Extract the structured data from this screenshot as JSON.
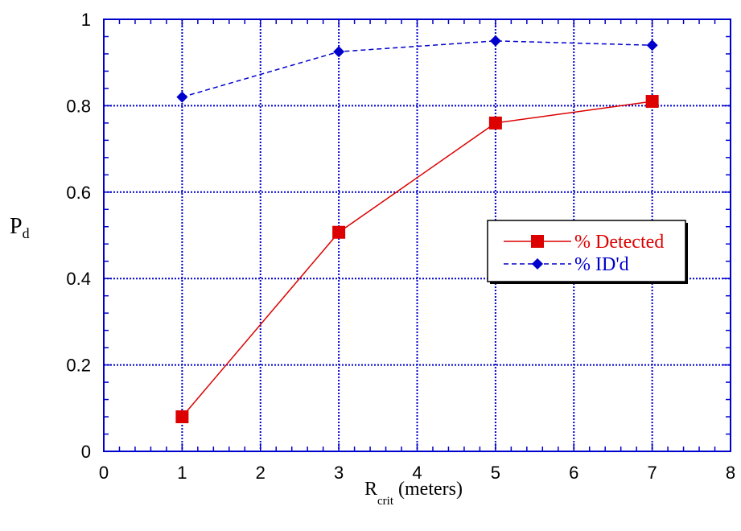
{
  "chart_data": {
    "type": "line",
    "xlim": [
      0,
      8
    ],
    "ylim": [
      0,
      1
    ],
    "x_ticks": [
      "0",
      "1",
      "2",
      "3",
      "4",
      "5",
      "6",
      "7",
      "8"
    ],
    "y_ticks": [
      "0",
      "0.2",
      "0.4",
      "0.6",
      "0.8",
      "1"
    ],
    "xlabel": {
      "main": "R",
      "sub": "crit",
      "rest": " (meters)"
    },
    "ylabel": {
      "main": "P",
      "sub": "d"
    },
    "grid": true,
    "legend_position": "middle-right",
    "series": [
      {
        "name": "% Detected",
        "color": "#dd0000",
        "line": "solid",
        "marker": "square",
        "x": [
          1,
          3,
          5,
          7
        ],
        "y": [
          0.08,
          0.507,
          0.76,
          0.81
        ]
      },
      {
        "name": "% ID'd",
        "color": "#0000cc",
        "line": "dashed",
        "marker": "diamond",
        "x": [
          1,
          3,
          5,
          7
        ],
        "y": [
          0.82,
          0.925,
          0.95,
          0.94
        ]
      }
    ],
    "colors": {
      "axis": "#0000cc",
      "grid": "#0000cc"
    }
  }
}
